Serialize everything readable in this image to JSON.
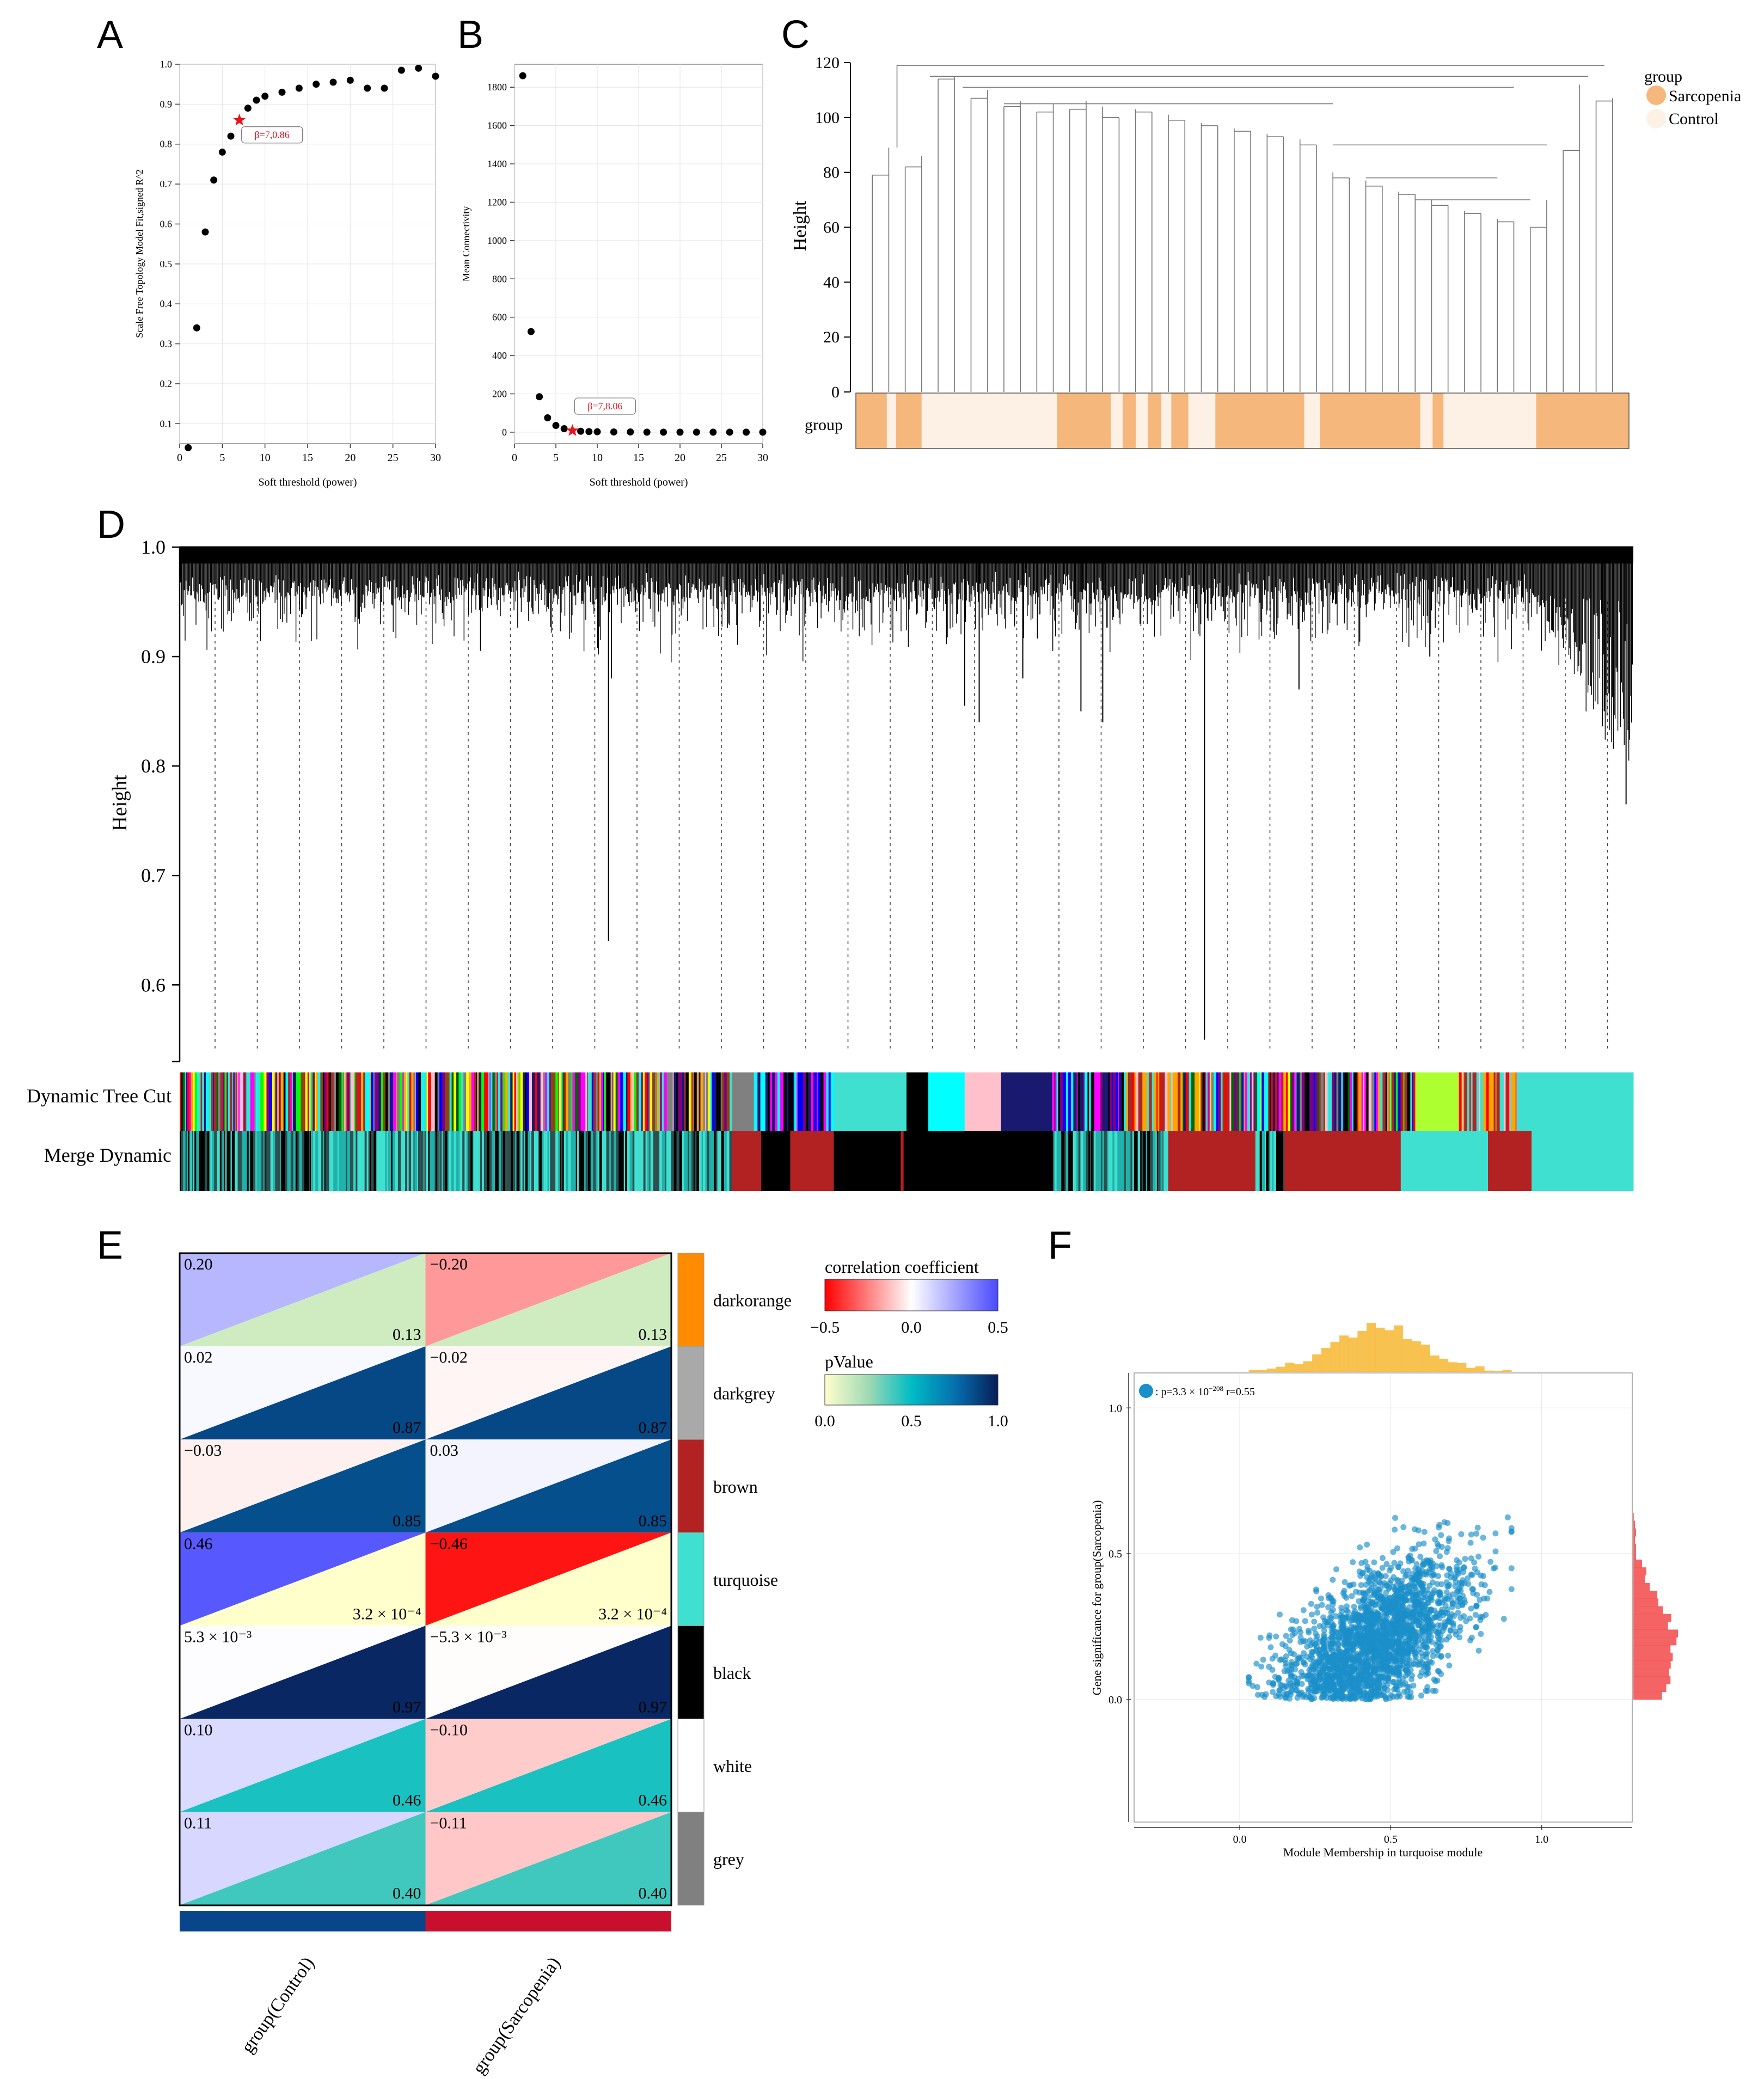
{
  "panels": [
    "A",
    "B",
    "C",
    "D",
    "E",
    "F"
  ],
  "chart_data": [
    {
      "id": "A",
      "type": "scatter",
      "xlabel": "Soft threshold (power)",
      "ylabel": "Scale Free Topology Model Fit,signed R^2",
      "xlim": [
        0,
        30
      ],
      "ylim": [
        0.05,
        1.0
      ],
      "xticks": [
        "0",
        "5",
        "10",
        "15",
        "20",
        "25",
        "30"
      ],
      "yticks": [
        "0.1",
        "0.2",
        "0.3",
        "0.4",
        "0.5",
        "0.6",
        "0.7",
        "0.8",
        "0.9",
        "1.0"
      ],
      "x": [
        1,
        2,
        3,
        4,
        5,
        6,
        7,
        8,
        9,
        10,
        12,
        14,
        16,
        18,
        20,
        22,
        24,
        26,
        28,
        30
      ],
      "y": [
        0.04,
        0.34,
        0.58,
        0.71,
        0.78,
        0.82,
        0.86,
        0.89,
        0.91,
        0.92,
        0.93,
        0.94,
        0.95,
        0.955,
        0.96,
        0.94,
        0.94,
        0.985,
        0.99,
        0.97
      ],
      "highlight": {
        "x": 7,
        "y": 0.86,
        "label": "β=7,0.86",
        "color": "#e8131c"
      }
    },
    {
      "id": "B",
      "type": "scatter",
      "xlabel": "Soft threshold (power)",
      "ylabel": "Mean Connectivity",
      "xlim": [
        0,
        30
      ],
      "ylim": [
        -60,
        1920
      ],
      "xticks": [
        "0",
        "5",
        "10",
        "15",
        "20",
        "25",
        "30"
      ],
      "yticks": [
        "0",
        "200",
        "400",
        "600",
        "800",
        "1000",
        "1200",
        "1400",
        "1600",
        "1800"
      ],
      "x": [
        1,
        2,
        3,
        4,
        5,
        6,
        7,
        8,
        9,
        10,
        12,
        14,
        16,
        18,
        20,
        22,
        24,
        26,
        28,
        30
      ],
      "y": [
        1860,
        525,
        185,
        75,
        35,
        18,
        8.06,
        5,
        3,
        2,
        1,
        1,
        0,
        0,
        0,
        0,
        0,
        0,
        0,
        0
      ],
      "highlight": {
        "x": 7,
        "y": 8.06,
        "label": "β=7,8.06",
        "color": "#e8131c"
      }
    },
    {
      "id": "C",
      "type": "dendrogram",
      "ylabel": "Height",
      "ylim": [
        0,
        120
      ],
      "yticks": [
        "0",
        "20",
        "40",
        "60",
        "80",
        "100",
        "120"
      ],
      "sample_bar_label": "group",
      "legend_title": "group",
      "legend": [
        {
          "name": "Sarcopenia",
          "color": "#f6b77d"
        },
        {
          "name": "Control",
          "color": "#fdf1e5"
        }
      ],
      "group_segments": [
        {
          "start": 0,
          "end": 0.04,
          "group": "Sarcopenia"
        },
        {
          "start": 0.04,
          "end": 0.052,
          "group": "Control"
        },
        {
          "start": 0.052,
          "end": 0.085,
          "group": "Sarcopenia"
        },
        {
          "start": 0.085,
          "end": 0.26,
          "group": "Control"
        },
        {
          "start": 0.26,
          "end": 0.33,
          "group": "Sarcopenia"
        },
        {
          "start": 0.33,
          "end": 0.345,
          "group": "Control"
        },
        {
          "start": 0.345,
          "end": 0.362,
          "group": "Sarcopenia"
        },
        {
          "start": 0.362,
          "end": 0.378,
          "group": "Control"
        },
        {
          "start": 0.378,
          "end": 0.395,
          "group": "Sarcopenia"
        },
        {
          "start": 0.395,
          "end": 0.408,
          "group": "Control"
        },
        {
          "start": 0.408,
          "end": 0.43,
          "group": "Sarcopenia"
        },
        {
          "start": 0.43,
          "end": 0.465,
          "group": "Control"
        },
        {
          "start": 0.465,
          "end": 0.58,
          "group": "Sarcopenia"
        },
        {
          "start": 0.58,
          "end": 0.6,
          "group": "Control"
        },
        {
          "start": 0.6,
          "end": 0.73,
          "group": "Sarcopenia"
        },
        {
          "start": 0.73,
          "end": 0.746,
          "group": "Control"
        },
        {
          "start": 0.746,
          "end": 0.76,
          "group": "Sarcopenia"
        },
        {
          "start": 0.76,
          "end": 0.88,
          "group": "Control"
        },
        {
          "start": 0.88,
          "end": 1.0,
          "group": "Sarcopenia"
        }
      ],
      "leaf_heights": [
        79,
        89,
        82,
        86,
        114,
        115,
        107,
        110,
        104,
        106,
        102,
        105,
        103,
        106,
        104,
        100,
        103,
        102,
        101,
        99,
        98,
        97,
        96,
        95,
        94,
        93,
        92,
        90,
        80,
        78,
        77,
        75,
        73,
        72,
        70,
        68,
        66,
        65,
        63,
        62,
        60,
        70,
        88,
        112,
        106,
        107
      ]
    },
    {
      "id": "D",
      "type": "dendrogram",
      "ylabel": "Height",
      "ylim": [
        0.53,
        1.0
      ],
      "yticks": [
        "0.6",
        "0.7",
        "0.8",
        "0.9",
        "1.0"
      ],
      "color_rows": [
        "Dynamic Tree Cut",
        "Merge Dynamic"
      ],
      "module_palette": [
        "#40e0d0",
        "#000000",
        "#a52a2a",
        "#0000ff",
        "#ff0000",
        "#ff00ff",
        "#00ff00",
        "#ffff00",
        "#ffc0cb",
        "#800080",
        "#ffa500",
        "#00ffff",
        "#8b4513",
        "#006400",
        "#191970",
        "#808080"
      ],
      "dynamic_segments": [
        {
          "start": 0.0,
          "end": 0.38,
          "mix": "mixed"
        },
        {
          "start": 0.38,
          "end": 0.395,
          "color": "#808080"
        },
        {
          "start": 0.395,
          "end": 0.45,
          "mix": "blues"
        },
        {
          "start": 0.45,
          "end": 0.5,
          "color": "#40e0d0"
        },
        {
          "start": 0.5,
          "end": 0.515,
          "color": "#000000"
        },
        {
          "start": 0.515,
          "end": 0.54,
          "color": "#00ffff"
        },
        {
          "start": 0.54,
          "end": 0.565,
          "color": "#ffc0cb"
        },
        {
          "start": 0.565,
          "end": 0.6,
          "color": "#191970"
        },
        {
          "start": 0.6,
          "end": 0.65,
          "mix": "blues"
        },
        {
          "start": 0.65,
          "end": 0.69,
          "mix": "reds"
        },
        {
          "start": 0.69,
          "end": 0.78,
          "mix": "mixed"
        },
        {
          "start": 0.78,
          "end": 0.85,
          "mix": "mixed"
        },
        {
          "start": 0.85,
          "end": 0.88,
          "color": "#adff2f"
        },
        {
          "start": 0.88,
          "end": 0.92,
          "mix": "reds"
        },
        {
          "start": 0.92,
          "end": 1.0,
          "color": "#40e0d0"
        }
      ],
      "merge_segments": [
        {
          "start": 0.0,
          "end": 0.38,
          "mix": "tealblack"
        },
        {
          "start": 0.38,
          "end": 0.4,
          "color": "#b22222"
        },
        {
          "start": 0.4,
          "end": 0.42,
          "color": "#000000"
        },
        {
          "start": 0.42,
          "end": 0.45,
          "color": "#b22222"
        },
        {
          "start": 0.45,
          "end": 0.496,
          "color": "#000000"
        },
        {
          "start": 0.496,
          "end": 0.498,
          "color": "#b22222"
        },
        {
          "start": 0.498,
          "end": 0.6,
          "color": "#000000"
        },
        {
          "start": 0.6,
          "end": 0.68,
          "mix": "tealblack"
        },
        {
          "start": 0.68,
          "end": 0.74,
          "color": "#b22222"
        },
        {
          "start": 0.74,
          "end": 0.76,
          "mix": "tealblack"
        },
        {
          "start": 0.76,
          "end": 0.84,
          "color": "#b22222"
        },
        {
          "start": 0.84,
          "end": 0.9,
          "color": "#40e0d0"
        },
        {
          "start": 0.9,
          "end": 0.93,
          "color": "#b22222"
        },
        {
          "start": 0.93,
          "end": 1.0,
          "color": "#40e0d0"
        }
      ]
    },
    {
      "id": "E",
      "type": "heatmap",
      "columns": [
        "group(Control)",
        "group(Sarcopenia)"
      ],
      "column_colors": [
        "#08458a",
        "#c8102e"
      ],
      "rows": [
        {
          "module": "darkorange",
          "color": "#ff8c00",
          "cors": [
            "0.20",
            "−0.20"
          ],
          "cor_values": [
            0.2,
            -0.2
          ],
          "p": [
            "0.13",
            "0.13"
          ],
          "p_values": [
            0.13,
            0.13
          ]
        },
        {
          "module": "darkgrey",
          "color": "#a9a9a9",
          "cors": [
            "0.02",
            "−0.02"
          ],
          "cor_values": [
            0.02,
            -0.02
          ],
          "p": [
            "0.87",
            "0.87"
          ],
          "p_values": [
            0.87,
            0.87
          ]
        },
        {
          "module": "brown",
          "color": "#b22222",
          "cors": [
            "−0.03",
            "0.03"
          ],
          "cor_values": [
            -0.03,
            0.03
          ],
          "p": [
            "0.85",
            "0.85"
          ],
          "p_values": [
            0.85,
            0.85
          ]
        },
        {
          "module": "turquoise",
          "color": "#40e0d0",
          "cors": [
            "0.46",
            "−0.46"
          ],
          "cor_values": [
            0.46,
            -0.46
          ],
          "p": [
            "3.2 × 10⁻⁴",
            "3.2 × 10⁻⁴"
          ],
          "p_values": [
            0.00032,
            0.00032
          ]
        },
        {
          "module": "black",
          "color": "#000000",
          "cors": [
            "5.3 × 10⁻³",
            "−5.3 × 10⁻³"
          ],
          "cor_values": [
            0.0053,
            -0.0053
          ],
          "p": [
            "0.97",
            "0.97"
          ],
          "p_values": [
            0.97,
            0.97
          ]
        },
        {
          "module": "white",
          "color": "#ffffff",
          "cors": [
            "0.10",
            "−0.10"
          ],
          "cor_values": [
            0.1,
            -0.1
          ],
          "p": [
            "0.46",
            "0.46"
          ],
          "p_values": [
            0.46,
            0.46
          ]
        },
        {
          "module": "grey",
          "color": "#808080",
          "cors": [
            "0.11",
            "−0.11"
          ],
          "cor_values": [
            0.11,
            -0.11
          ],
          "p": [
            "0.40",
            "0.40"
          ],
          "p_values": [
            0.4,
            0.4
          ]
        }
      ],
      "legend_correlation": {
        "title": "correlation coefficient",
        "ticks": [
          "−0.5",
          "0.0",
          "0.5"
        ],
        "range": [
          -0.5,
          0.5
        ]
      },
      "legend_pvalue": {
        "title": "pValue",
        "ticks": [
          "0.0",
          "0.5",
          "1.0"
        ],
        "range": [
          0,
          1
        ]
      }
    },
    {
      "id": "F",
      "type": "scatter",
      "xlabel": "Module Membership in turquoise module",
      "ylabel": "Gene significance for group(Sarcopenia)",
      "xlim": [
        -0.35,
        1.3
      ],
      "ylim": [
        -0.42,
        1.12
      ],
      "xticks": [
        "0.0",
        "0.5",
        "1.0"
      ],
      "yticks": [
        "0.0",
        "0.5",
        "1.0"
      ],
      "point_color": "#1a8fc9",
      "annotation": {
        "prefix": ": p=3.3 × 10",
        "exponent": "−208",
        "suffix": " r=0.55"
      },
      "n_points": 2200,
      "x_mean": 0.45,
      "x_sd": 0.15,
      "y_vs_x": {
        "slope": 0.55,
        "intercept": -0.05,
        "noise_sd": 0.12
      },
      "x_hist_color": "#f7b731",
      "y_hist_color": "#f24949"
    }
  ]
}
